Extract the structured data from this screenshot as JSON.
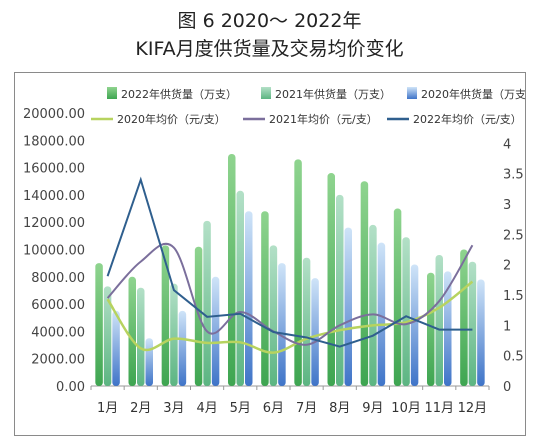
{
  "figure": {
    "title_line1": "图 6  2020～ 2022年",
    "title_line2": "KIFA月度供货量及交易均价变化"
  },
  "chart_data": {
    "type": "bar",
    "categories": [
      "1月",
      "2月",
      "3月",
      "4月",
      "5月",
      "6月",
      "7月",
      "8月",
      "9月",
      "10月",
      "11月",
      "12月"
    ],
    "left_axis": {
      "range": [
        0,
        20000
      ],
      "ticks": [
        "0.00",
        "2000.00",
        "4000.00",
        "6000.00",
        "8000.00",
        "10000.00",
        "12000.00",
        "14000.00",
        "16000.00",
        "18000.00",
        "20000.00"
      ]
    },
    "right_axis": {
      "range": [
        0,
        4.5
      ],
      "ticks": [
        "0",
        "0.5",
        "1",
        "1.5",
        "2",
        "2.5",
        "3",
        "3.5",
        "4"
      ]
    },
    "bar_series": [
      {
        "name": "2022年供货量（万支）",
        "color_top": "#8fd48f",
        "color_bottom": "#3ea551",
        "values": [
          9000,
          8000,
          10300,
          10200,
          17000,
          12800,
          16600,
          15600,
          15000,
          13000,
          8300,
          10000
        ]
      },
      {
        "name": "2021年供货量（万支）",
        "color_top": "#b3e0c7",
        "color_bottom": "#5cb582",
        "values": [
          7300,
          7200,
          7500,
          12100,
          14300,
          10300,
          9400,
          14000,
          11800,
          10900,
          9600,
          9100
        ]
      },
      {
        "name": "2020年供货量（万支）",
        "color_top": "#cfe4f8",
        "color_bottom": "#3f74c8",
        "values": [
          5500,
          3500,
          5500,
          8000,
          12800,
          9000,
          7900,
          11600,
          10500,
          8900,
          8400,
          7800
        ]
      }
    ],
    "line_series": [
      {
        "name": "2020年均价（元/支）",
        "color": "#b7d35f",
        "values": [
          1.43,
          0.62,
          0.78,
          0.71,
          0.72,
          0.55,
          0.78,
          0.92,
          1.0,
          1.05,
          1.29,
          1.72
        ]
      },
      {
        "name": "2021年均价（元/支）",
        "color": "#7b6f9c",
        "values": [
          1.45,
          2.05,
          2.28,
          0.9,
          1.22,
          0.9,
          0.68,
          1.0,
          1.18,
          1.02,
          1.4,
          2.32
        ]
      },
      {
        "name": "2022年均价（元/支）",
        "color": "#2f5f8e",
        "values": [
          1.81,
          3.4,
          1.58,
          1.14,
          1.19,
          0.89,
          0.8,
          0.65,
          0.83,
          1.15,
          0.93,
          0.93
        ]
      }
    ],
    "legend": {
      "position": "top"
    },
    "grid": false
  }
}
